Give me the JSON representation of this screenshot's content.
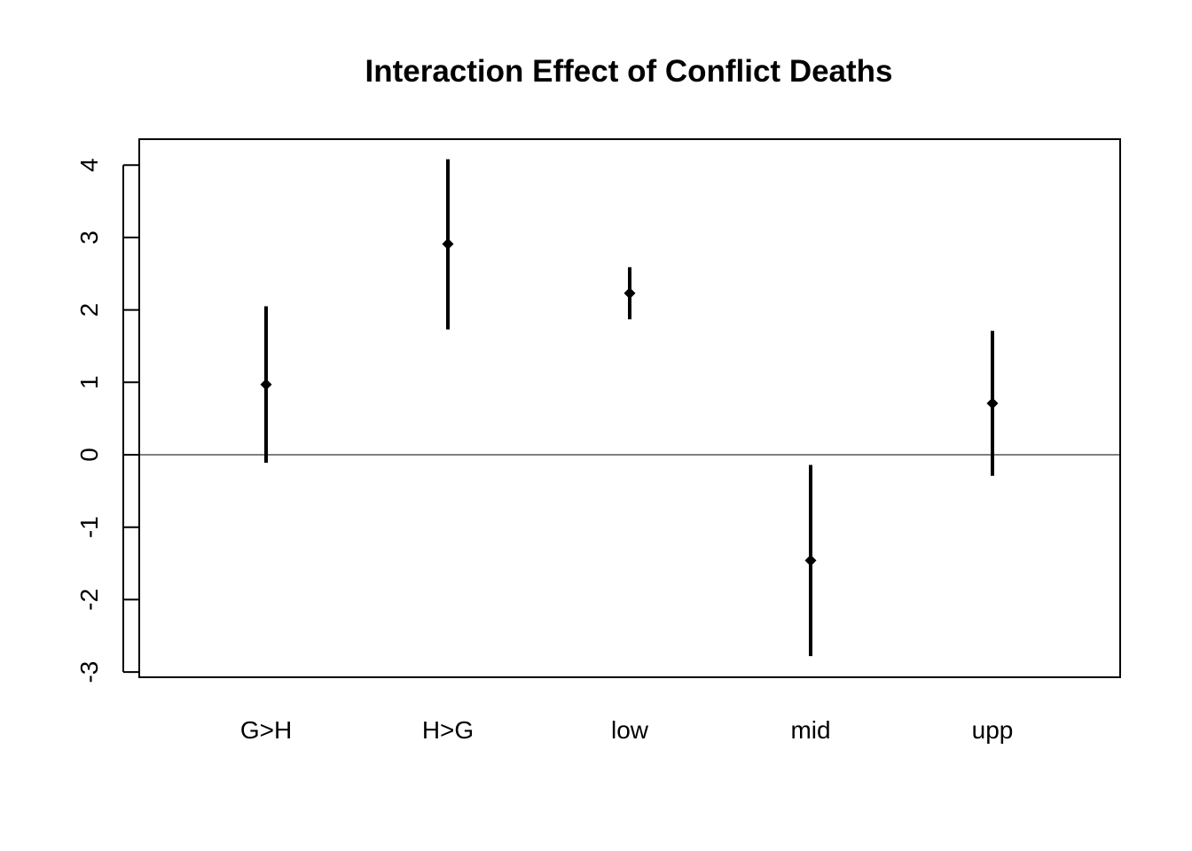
{
  "chart_data": {
    "type": "scatter",
    "title": "Interaction Effect of Conflict Deaths",
    "xlabel": "",
    "ylabel": "",
    "categories": [
      "G>H",
      "H>G",
      "low",
      "mid",
      "upp"
    ],
    "series": [
      {
        "estimate": [
          0.97,
          2.91,
          2.23,
          -1.46,
          0.71
        ],
        "lower": [
          -0.11,
          1.73,
          1.87,
          -2.78,
          -0.29
        ],
        "upper": [
          2.05,
          4.08,
          2.59,
          -0.14,
          1.71
        ]
      }
    ],
    "yticks": [
      -3,
      -2,
      -1,
      0,
      1,
      2,
      3,
      4
    ],
    "ylim": [
      -3.05,
      4.35
    ],
    "reference_line": 0,
    "grid": false,
    "colors": {
      "marks": "#000000",
      "reference_line": "#000000"
    }
  }
}
